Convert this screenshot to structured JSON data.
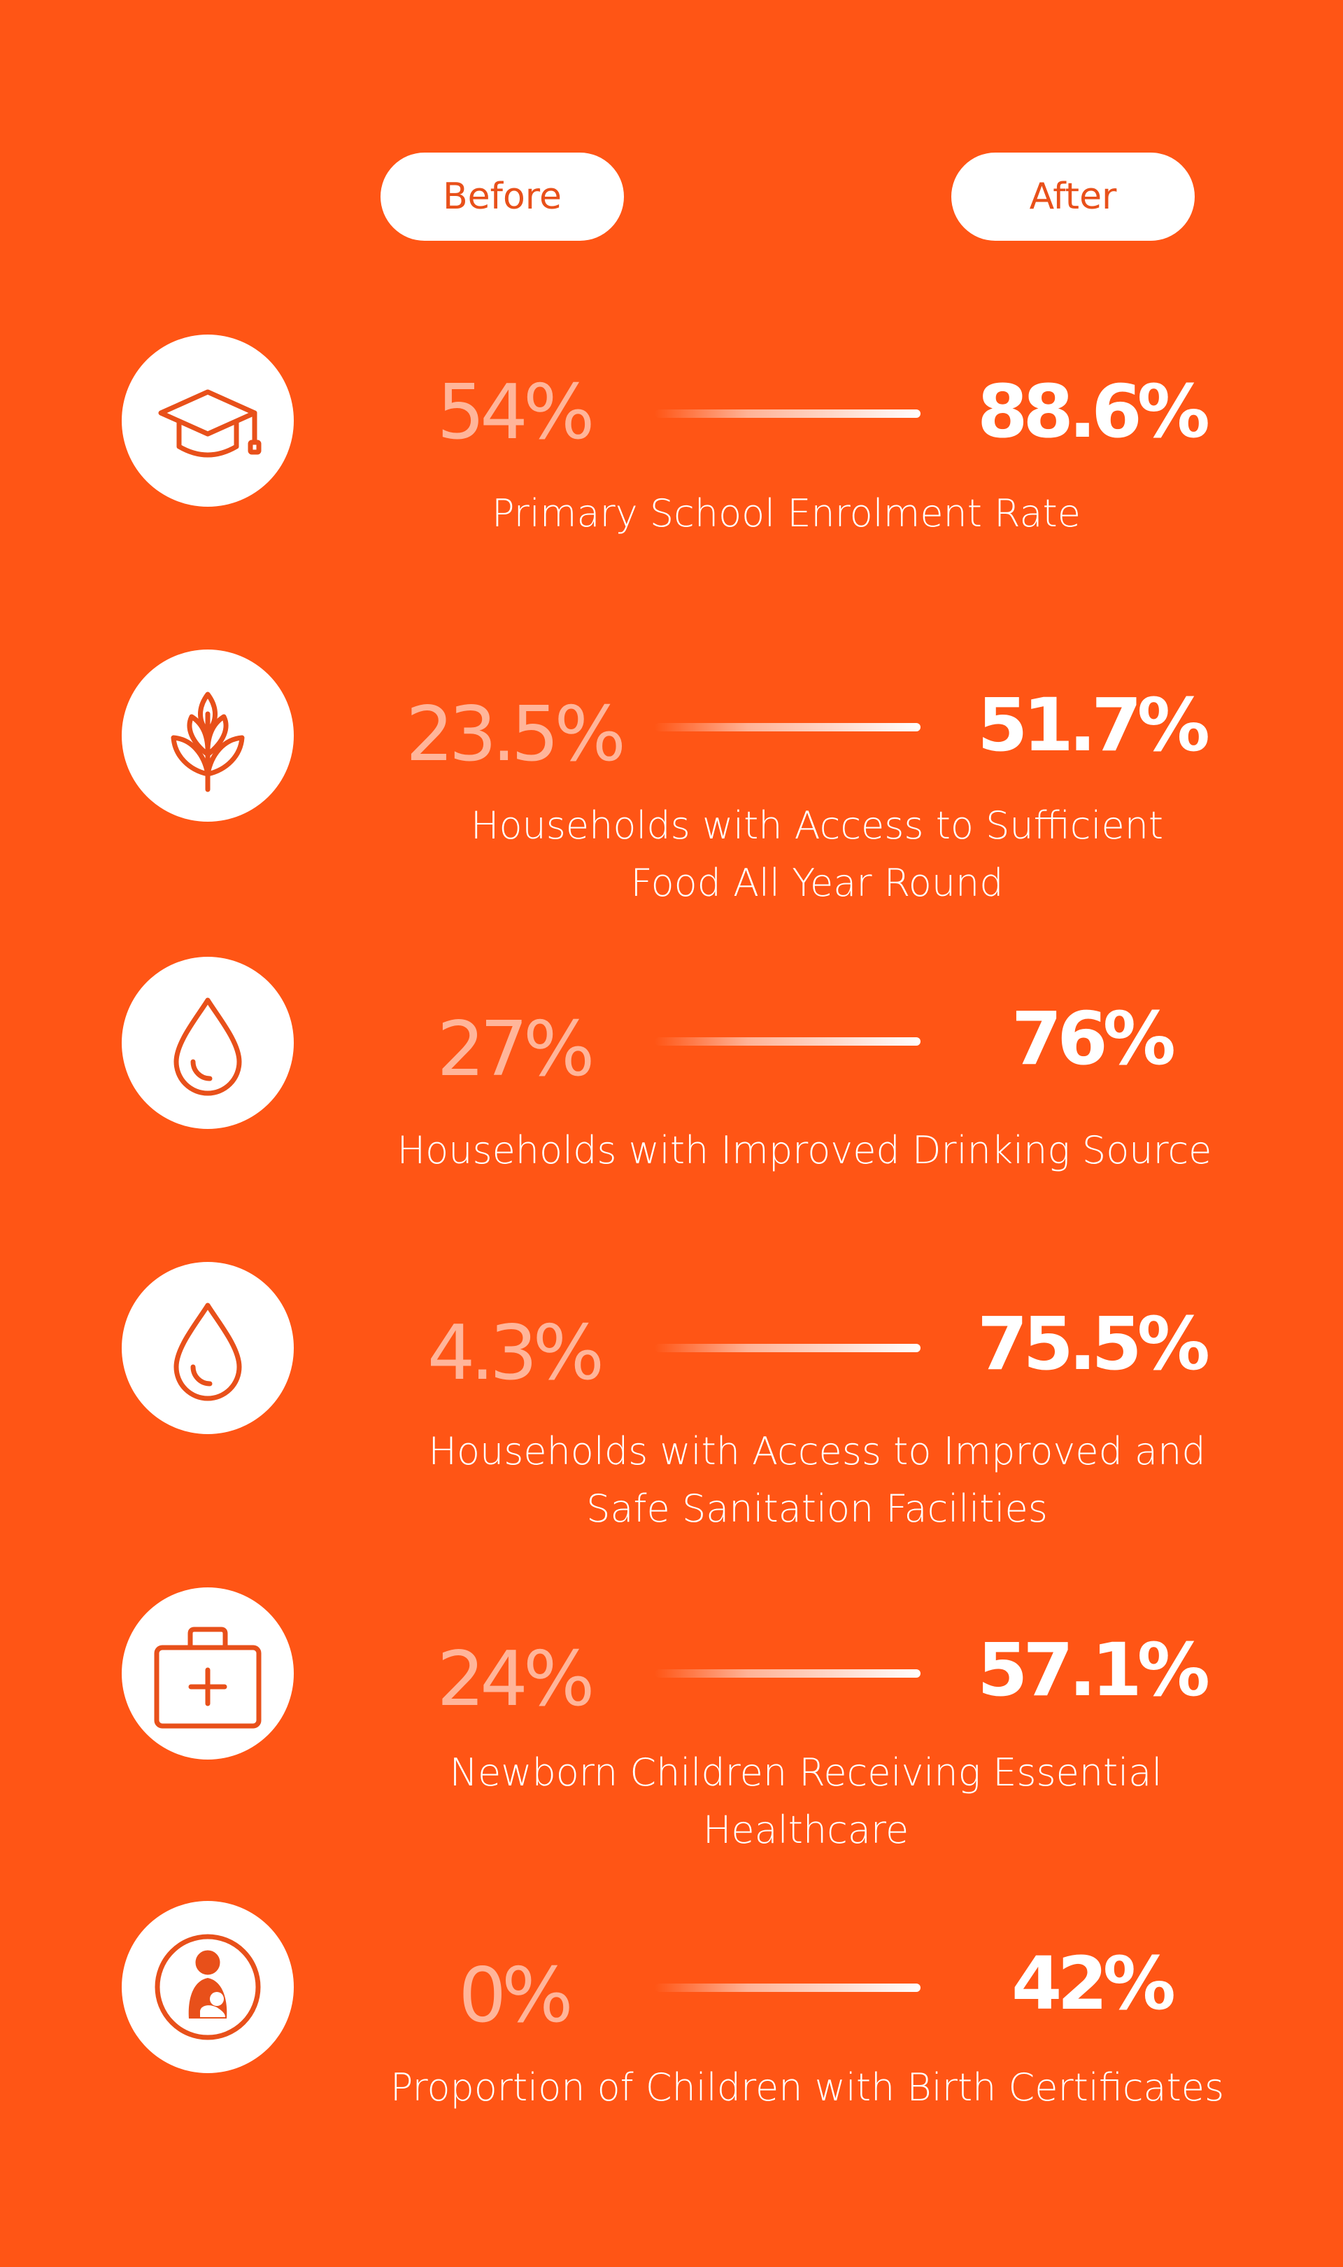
{
  "header": {
    "before_label": "Before",
    "after_label": "After"
  },
  "colors": {
    "background": "#FF5515",
    "icon_stroke": "#E8501A",
    "before_value": "#FFB59A",
    "after_value": "#ffffff"
  },
  "indicators": [
    {
      "icon": "graduation-cap-icon",
      "before": "54%",
      "after": "88.6%",
      "label": "Primary School Enrolment Rate"
    },
    {
      "icon": "wheat-icon",
      "before": "23.5%",
      "after": "51.7%",
      "label": "Households with Access to Sufficient\nFood All Year Round"
    },
    {
      "icon": "water-drop-icon",
      "before": "27%",
      "after": "76%",
      "label": "Households with Improved Drinking Source"
    },
    {
      "icon": "water-drop-icon",
      "before": "4.3%",
      "after": "75.5%",
      "label": "Households with Access to Improved and\nSafe Sanitation Facilities"
    },
    {
      "icon": "first-aid-kit-icon",
      "before": "24%",
      "after": "57.1%",
      "label": "Newborn Children Receiving Essential\nHealthcare"
    },
    {
      "icon": "mother-child-icon",
      "before": "0%",
      "after": "42%",
      "label": "Proportion of Children with Birth Certificates"
    }
  ]
}
